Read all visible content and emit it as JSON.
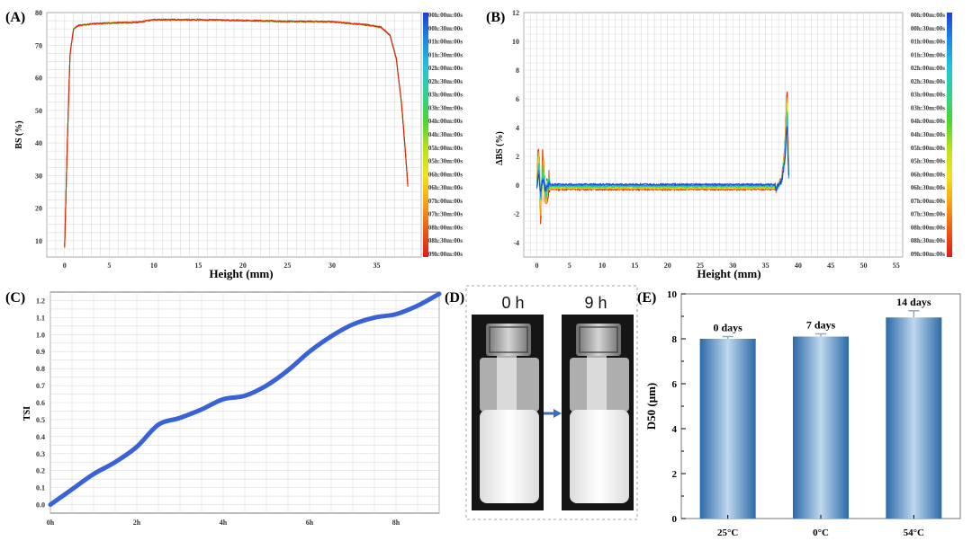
{
  "panels": {
    "A": {
      "label": "(A)"
    },
    "B": {
      "label": "(B)"
    },
    "C": {
      "label": "(C)"
    },
    "D": {
      "label": "(D)",
      "vial_left_label": "0 h",
      "vial_right_label": "9 h"
    },
    "E": {
      "label": "(E)"
    }
  },
  "legend": {
    "colors": [
      "#1f3fd6",
      "#1a8ae6",
      "#22c4d8",
      "#2fd38f",
      "#4ad52f",
      "#b9e11c",
      "#f3e21a",
      "#f7a313",
      "#f05a12",
      "#e11a14"
    ]
  },
  "chart_data": [
    {
      "id": "A",
      "type": "line",
      "title": "",
      "xlabel": "Height (mm)",
      "ylabel": "BS (%)",
      "xlim": [
        -2,
        40
      ],
      "ylim": [
        5,
        80
      ],
      "xticks": [
        "0",
        "5",
        "10",
        "15",
        "20",
        "25",
        "30",
        "35"
      ],
      "xtick_values": [
        0,
        5,
        10,
        15,
        20,
        25,
        30,
        35
      ],
      "yticks": [
        "10",
        "20",
        "30",
        "40",
        "50",
        "60",
        "70",
        "80"
      ],
      "ytick_values": [
        10,
        20,
        30,
        40,
        50,
        60,
        70,
        80
      ],
      "legend": [
        "00h:00m:00s",
        "00h:30m:00s",
        "01h:00m:00s",
        "01h:30m:00s",
        "02h:00m:00s",
        "02h:30m:00s",
        "03h:00m:00s",
        "03h:30m:00s",
        "04h:00m:00s",
        "04h:30m:00s",
        "05h:00m:00s",
        "05h:30m:00s",
        "06h:00m:00s",
        "06h:30m:00s",
        "07h:00m:00s",
        "07h:30m:00s",
        "08h:00m:00s",
        "08h:30m:00s",
        "09h:00m:00s"
      ],
      "series_profile": {
        "x": [
          0,
          0.3,
          0.6,
          1.0,
          1.5,
          3,
          5,
          8,
          10,
          15,
          20,
          25,
          30,
          34,
          35.5,
          36.5,
          37.2,
          37.8,
          38.2,
          38.6
        ],
        "y": [
          8,
          40,
          67,
          75,
          76,
          76.5,
          76.8,
          77,
          77.8,
          77.8,
          77.6,
          77.3,
          77.2,
          76.2,
          75.5,
          73,
          66,
          52,
          38,
          23
        ]
      }
    },
    {
      "id": "B",
      "type": "line",
      "title": "",
      "xlabel": "Height (mm)",
      "ylabel": "ΔBS (%)",
      "xlim": [
        -2,
        56
      ],
      "ylim": [
        -5,
        12
      ],
      "xticks": [
        "0",
        "5",
        "10",
        "15",
        "20",
        "25",
        "30",
        "35",
        "40",
        "45",
        "50",
        "55"
      ],
      "xtick_values": [
        0,
        5,
        10,
        15,
        20,
        25,
        30,
        35,
        40,
        45,
        50,
        55
      ],
      "yticks": [
        "-4",
        "-2",
        "0",
        "2",
        "4",
        "6",
        "8",
        "10",
        "12"
      ],
      "ytick_values": [
        -4,
        -2,
        0,
        2,
        4,
        6,
        8,
        10,
        12
      ],
      "legend": [
        "00h:00m:00s",
        "00h:30m:00s",
        "01h:00m:00s",
        "01h:30m:00s",
        "02h:00m:00s",
        "02h:30m:00s",
        "03h:00m:00s",
        "03h:30m:00s",
        "04h:00m:00s",
        "04h:30m:00s",
        "05h:00m:00s",
        "05h:30m:00s",
        "06h:00m:00s",
        "06h:30m:00s",
        "07h:00m:00s",
        "07h:30m:00s",
        "08h:00m:00s",
        "08h:30m:00s",
        "09h:00m:00s"
      ],
      "series_profile": {
        "x": [
          0,
          0.3,
          0.6,
          0.9,
          1.3,
          2,
          3,
          5,
          10,
          20,
          30,
          35,
          36.5,
          37.5,
          38.0,
          38.3,
          38.6
        ],
        "y": [
          0,
          3.0,
          -2.5,
          2.0,
          -1.0,
          0.5,
          -0.2,
          -0.1,
          -0.2,
          -0.3,
          -0.2,
          -0.2,
          -0.5,
          0.5,
          3.0,
          7.0,
          0
        ]
      }
    },
    {
      "id": "C",
      "type": "line",
      "title": "",
      "xlabel": "",
      "ylabel": "TSI",
      "xlim": [
        0,
        9
      ],
      "ylim": [
        -0.05,
        1.25
      ],
      "xticks": [
        "0h",
        "2h",
        "4h",
        "6h",
        "8h"
      ],
      "xtick_values": [
        0,
        2,
        4,
        6,
        8
      ],
      "yticks": [
        "0.0",
        "0.1",
        "0.2",
        "0.3",
        "0.4",
        "0.5",
        "0.6",
        "0.7",
        "0.8",
        "0.9",
        "1.0",
        "1.1",
        "1.2"
      ],
      "ytick_values": [
        0,
        0.1,
        0.2,
        0.3,
        0.4,
        0.5,
        0.6,
        0.7,
        0.8,
        0.9,
        1.0,
        1.1,
        1.2
      ],
      "series": [
        {
          "name": "TSI",
          "x": [
            0,
            0.5,
            1,
            1.5,
            2,
            2.5,
            3,
            3.5,
            4,
            4.5,
            5,
            5.5,
            6,
            6.5,
            7,
            7.5,
            8,
            8.5,
            9
          ],
          "values": [
            0,
            0.09,
            0.18,
            0.25,
            0.34,
            0.47,
            0.51,
            0.56,
            0.62,
            0.64,
            0.7,
            0.79,
            0.9,
            0.99,
            1.06,
            1.1,
            1.12,
            1.17,
            1.24
          ],
          "color": "#3a62d8"
        }
      ]
    },
    {
      "id": "E",
      "type": "bar",
      "title": "",
      "xlabel": "",
      "ylabel": "D50 (μm)",
      "ylim": [
        0,
        10
      ],
      "yticks": [
        "0",
        "2",
        "4",
        "6",
        "8",
        "10"
      ],
      "ytick_values": [
        0,
        2,
        4,
        6,
        8,
        10
      ],
      "categories": [
        "25°C",
        "0°C",
        "54°C"
      ],
      "values": [
        8.0,
        8.1,
        8.95
      ],
      "errors": [
        0.1,
        0.12,
        0.3
      ],
      "data_labels": [
        "0 days",
        "7 days",
        "14 days"
      ]
    }
  ]
}
